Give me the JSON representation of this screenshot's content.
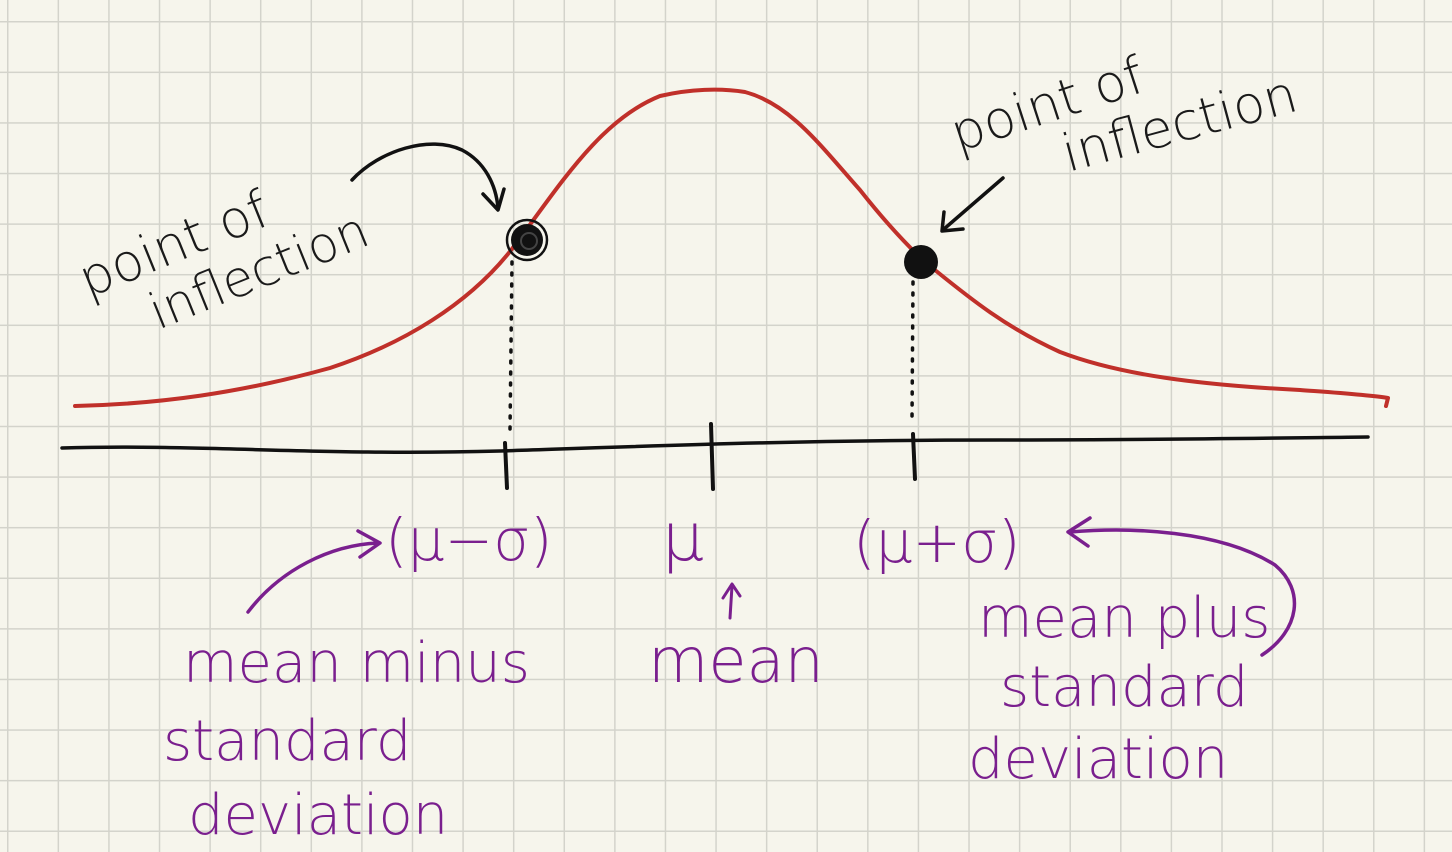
{
  "colors": {
    "background": "#f6f5ec",
    "grid": "#d3d3cb",
    "curve": "#c0302a",
    "axis": "#111111",
    "annotation_purple": "#7a1f8e",
    "ink": "#1a1a1a"
  },
  "labels": {
    "left_inflection": {
      "line1": "point of",
      "line2": "inflection"
    },
    "right_inflection": {
      "line1": "point of",
      "line2": "inflection"
    },
    "mu_minus_sigma": "(μ−σ)",
    "mu": "μ",
    "mu_plus_sigma": "(μ+σ)",
    "mean": "mean",
    "mean_minus": {
      "line1": "mean minus",
      "line2": "standard",
      "line3": "deviation"
    },
    "mean_plus": {
      "line1": "mean plus",
      "line2": "standard",
      "line3": "deviation"
    }
  }
}
